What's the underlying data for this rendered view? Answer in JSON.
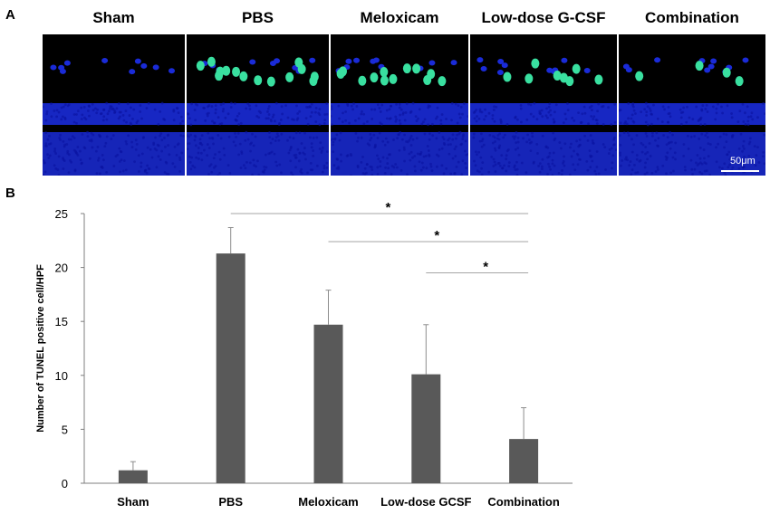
{
  "panel_a": {
    "letter": "A",
    "groups": [
      "Sham",
      "PBS",
      "Meloxicam",
      "Low-dose G-CSF",
      "Combination"
    ],
    "scale_bar_label": "50μm",
    "stain_colors": {
      "nuclei": "#1a2bd8",
      "tunel": "#39e0a0",
      "background": "#000000"
    },
    "tunel_positive_density": [
      0,
      14,
      12,
      8,
      4
    ]
  },
  "panel_b": {
    "letter": "B"
  },
  "chart_data": {
    "type": "bar",
    "title": "",
    "xlabel": "",
    "ylabel": "Number of TUNEL positive cell/HPF",
    "categories": [
      "Sham",
      "PBS",
      "Meloxicam",
      "Low-dose GCSF",
      "Combination"
    ],
    "values": [
      1.2,
      21.3,
      14.7,
      10.1,
      4.1
    ],
    "error_bars": [
      0.8,
      2.4,
      3.2,
      4.6,
      2.9
    ],
    "ylim": [
      0,
      25
    ],
    "yticks": [
      0,
      5,
      10,
      15,
      20,
      25
    ],
    "bar_color": "#595959",
    "grid": false,
    "significance": [
      {
        "from": "PBS",
        "to": "Combination",
        "y": 25.0,
        "label": "*"
      },
      {
        "from": "Meloxicam",
        "to": "Combination",
        "y": 22.4,
        "label": "*"
      },
      {
        "from": "Low-dose GCSF",
        "to": "Combination",
        "y": 19.5,
        "label": "*"
      }
    ]
  }
}
